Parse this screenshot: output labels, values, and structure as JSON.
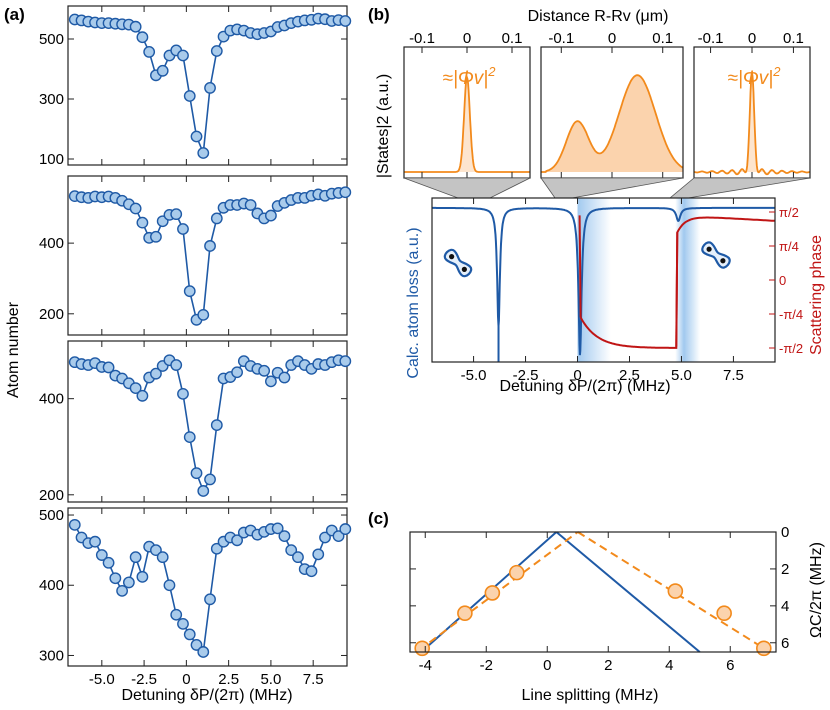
{
  "panel_labels": {
    "a": "(a)",
    "b": "(b)",
    "c": "(c)"
  },
  "colors": {
    "blue": "#1f5aa6",
    "marker_fill": "#a9cbeb",
    "orange": "#f28a1c",
    "orange_fill": "#fbd3ad",
    "red": "#c01515",
    "band": "#9cc6ee"
  },
  "chart_data": [
    {
      "type": "scatter",
      "panel": "(a)",
      "xlabel": "Detuning δP/(2π) (MHz)",
      "ylabel": "Atom number",
      "xlim": [
        -7,
        9.5
      ],
      "x_ticks": [
        "-5.0",
        "-2.5",
        "0",
        "2.5",
        "5.0",
        "7.5"
      ],
      "x_tick_values": [
        -5,
        -2.5,
        0,
        2.5,
        5,
        7.5
      ],
      "subplots": [
        {
          "ylim": [
            80,
            610
          ],
          "yticks": [
            100,
            300,
            500
          ],
          "points": [
            [
              -6.6,
              565
            ],
            [
              -6.2,
              562
            ],
            [
              -5.8,
              558
            ],
            [
              -5.4,
              555
            ],
            [
              -5.0,
              553
            ],
            [
              -4.6,
              553
            ],
            [
              -4.2,
              551
            ],
            [
              -3.8,
              549
            ],
            [
              -3.4,
              548
            ],
            [
              -3.0,
              541
            ],
            [
              -2.6,
              506
            ],
            [
              -2.2,
              457
            ],
            [
              -1.8,
              379
            ],
            [
              -1.4,
              394
            ],
            [
              -1.0,
              445
            ],
            [
              -0.6,
              462
            ],
            [
              -0.2,
              445
            ],
            [
              0.2,
              310
            ],
            [
              0.6,
              175
            ],
            [
              1.0,
              120
            ],
            [
              1.4,
              337
            ],
            [
              1.8,
              460
            ],
            [
              2.2,
              508
            ],
            [
              2.6,
              528
            ],
            [
              3.0,
              532
            ],
            [
              3.4,
              528
            ],
            [
              3.8,
              520
            ],
            [
              4.2,
              516
            ],
            [
              4.6,
              520
            ],
            [
              5.0,
              525
            ],
            [
              5.4,
              540
            ],
            [
              5.8,
              545
            ],
            [
              6.2,
              553
            ],
            [
              6.6,
              558
            ],
            [
              7.0,
              562
            ],
            [
              7.4,
              564
            ],
            [
              7.8,
              568
            ],
            [
              8.2,
              566
            ],
            [
              8.6,
              560
            ],
            [
              9.0,
              563
            ],
            [
              9.4,
              560
            ]
          ]
        },
        {
          "ylim": [
            140,
            590
          ],
          "yticks": [
            200,
            400
          ],
          "points": [
            [
              -6.6,
              533
            ],
            [
              -6.2,
              530
            ],
            [
              -5.8,
              528
            ],
            [
              -5.4,
              532
            ],
            [
              -5.0,
              530
            ],
            [
              -4.6,
              532
            ],
            [
              -4.2,
              528
            ],
            [
              -3.8,
              520
            ],
            [
              -3.4,
              510
            ],
            [
              -3.0,
              498
            ],
            [
              -2.6,
              458
            ],
            [
              -2.2,
              415
            ],
            [
              -1.8,
              418
            ],
            [
              -1.4,
              462
            ],
            [
              -1.0,
              480
            ],
            [
              -0.6,
              482
            ],
            [
              -0.2,
              440
            ],
            [
              0.2,
              264
            ],
            [
              0.6,
              183
            ],
            [
              1.0,
              197
            ],
            [
              1.4,
              392
            ],
            [
              1.8,
              470
            ],
            [
              2.2,
              500
            ],
            [
              2.6,
              508
            ],
            [
              3.0,
              508
            ],
            [
              3.4,
              512
            ],
            [
              3.8,
              508
            ],
            [
              4.2,
              484
            ],
            [
              4.6,
              470
            ],
            [
              5.0,
              478
            ],
            [
              5.4,
              505
            ],
            [
              5.8,
              514
            ],
            [
              6.2,
              522
            ],
            [
              6.6,
              528
            ],
            [
              7.0,
              528
            ],
            [
              7.4,
              534
            ],
            [
              7.8,
              538
            ],
            [
              8.2,
              534
            ],
            [
              8.6,
              540
            ],
            [
              9.0,
              542
            ],
            [
              9.4,
              544
            ]
          ]
        },
        {
          "ylim": [
            185,
            520
          ],
          "yticks": [
            200,
            400
          ],
          "points": [
            [
              -6.6,
              476
            ],
            [
              -6.2,
              472
            ],
            [
              -5.8,
              470
            ],
            [
              -5.4,
              474
            ],
            [
              -5.0,
              466
            ],
            [
              -4.6,
              465
            ],
            [
              -4.2,
              448
            ],
            [
              -3.8,
              442
            ],
            [
              -3.4,
              432
            ],
            [
              -3.0,
              422
            ],
            [
              -2.6,
              406
            ],
            [
              -2.2,
              444
            ],
            [
              -1.8,
              452
            ],
            [
              -1.4,
              468
            ],
            [
              -1.0,
              480
            ],
            [
              -0.6,
              470
            ],
            [
              -0.2,
              410
            ],
            [
              0.2,
              320
            ],
            [
              0.6,
              245
            ],
            [
              1.0,
              208
            ],
            [
              1.4,
              232
            ],
            [
              1.8,
              345
            ],
            [
              2.2,
              442
            ],
            [
              2.6,
              445
            ],
            [
              3.0,
              455
            ],
            [
              3.4,
              478
            ],
            [
              3.8,
              468
            ],
            [
              4.2,
              462
            ],
            [
              4.6,
              458
            ],
            [
              5.0,
              436
            ],
            [
              5.4,
              454
            ],
            [
              5.8,
              444
            ],
            [
              6.2,
              470
            ],
            [
              6.6,
              478
            ],
            [
              7.0,
              470
            ],
            [
              7.4,
              462
            ],
            [
              7.8,
              472
            ],
            [
              8.2,
              470
            ],
            [
              8.6,
              476
            ],
            [
              9.0,
              480
            ],
            [
              9.4,
              478
            ]
          ]
        },
        {
          "ylim": [
            285,
            510
          ],
          "yticks": [
            300,
            400,
            500
          ],
          "points": [
            [
              -6.6,
              486
            ],
            [
              -6.2,
              468
            ],
            [
              -5.8,
              460
            ],
            [
              -5.4,
              462
            ],
            [
              -5.0,
              443
            ],
            [
              -4.6,
              432
            ],
            [
              -4.2,
              410
            ],
            [
              -3.8,
              392
            ],
            [
              -3.4,
              404
            ],
            [
              -3.0,
              440
            ],
            [
              -2.6,
              412
            ],
            [
              -2.2,
              455
            ],
            [
              -1.8,
              450
            ],
            [
              -1.4,
              440
            ],
            [
              -1.0,
              400
            ],
            [
              -0.6,
              358
            ],
            [
              -0.2,
              345
            ],
            [
              0.2,
              330
            ],
            [
              0.6,
              315
            ],
            [
              1.0,
              305
            ],
            [
              1.4,
              380
            ],
            [
              1.8,
              452
            ],
            [
              2.2,
              462
            ],
            [
              2.6,
              468
            ],
            [
              3.0,
              464
            ],
            [
              3.4,
              475
            ],
            [
              3.8,
              478
            ],
            [
              4.2,
              472
            ],
            [
              4.6,
              476
            ],
            [
              5.0,
              480
            ],
            [
              5.4,
              481
            ],
            [
              5.8,
              470
            ],
            [
              6.2,
              450
            ],
            [
              6.6,
              440
            ],
            [
              7.0,
              423
            ],
            [
              7.4,
              420
            ],
            [
              7.8,
              444
            ],
            [
              8.2,
              468
            ],
            [
              8.6,
              478
            ],
            [
              9.0,
              470
            ],
            [
              9.4,
              480
            ]
          ]
        }
      ]
    },
    {
      "type": "line",
      "panel": "(b) insets",
      "xlabel": "Distance R-Rv (μm)",
      "ylabel": "|States|2 (a.u.)",
      "x_ticks": [
        "-0.1",
        "0",
        "0.1"
      ],
      "x_tick_values": [
        -0.1,
        0,
        0.1
      ],
      "xlim": [
        -0.14,
        0.14
      ],
      "annotation": "≈|Φv|2",
      "insets": [
        "narrow peak at 0",
        "broad two-lobe distribution",
        "narrow peak with side ripples"
      ]
    },
    {
      "type": "line",
      "panel": "(b) main",
      "xlabel": "Detuning δP/(2π) (MHz)",
      "ylabel_left": "Calc. atom loss (a.u.)",
      "ylabel_right": "Scattering phase",
      "xlim": [
        -7,
        9.5
      ],
      "x_ticks": [
        "-5.0",
        "-2.5",
        "0",
        "2.5",
        "5.0",
        "7.5"
      ],
      "x_tick_values": [
        -5,
        -2.5,
        0,
        2.5,
        5,
        7.5
      ],
      "right_ticks": [
        "π/2",
        "π/4",
        "0",
        "-π/4",
        "-π/2"
      ],
      "resonances_mhz": [
        -3.8,
        0.1,
        4.9
      ],
      "shaded_bands_mhz": [
        [
          0,
          1.6
        ],
        [
          4.7,
          5.9
        ]
      ],
      "series": [
        {
          "name": "Calc. atom loss (a.u.)",
          "color": "#1f5aa6"
        },
        {
          "name": "Scattering phase",
          "color": "#c01515"
        }
      ]
    },
    {
      "type": "scatter",
      "panel": "(c)",
      "xlabel": "Line splitting (MHz)",
      "ylabel_right": "ΩC/2π (MHz)",
      "xlim": [
        -4.5,
        7.5
      ],
      "ylim": [
        0,
        6.5
      ],
      "x_ticks": [
        "-4",
        "-2",
        "0",
        "2",
        "4",
        "6"
      ],
      "x_tick_values": [
        -4,
        -2,
        0,
        2,
        4,
        6
      ],
      "y_ticks": [
        "0",
        "2",
        "4",
        "6"
      ],
      "y_tick_values": [
        0,
        2,
        4,
        6
      ],
      "points": [
        [
          -4.1,
          6.3
        ],
        [
          -2.7,
          4.4
        ],
        [
          -1.8,
          3.3
        ],
        [
          -1.0,
          2.2
        ],
        [
          4.2,
          3.2
        ],
        [
          5.8,
          4.4
        ],
        [
          7.1,
          6.3
        ]
      ],
      "solid_lines": [
        [
          [
            -4.2,
            6.6
          ],
          [
            0.3,
            0
          ]
        ],
        [
          [
            0.3,
            0
          ],
          [
            5.0,
            6.5
          ]
        ]
      ],
      "dashed_lines": [
        [
          [
            -4.2,
            6.4
          ],
          [
            1.0,
            0
          ]
        ],
        [
          [
            1.0,
            0
          ],
          [
            7.2,
            6.4
          ]
        ]
      ]
    }
  ]
}
